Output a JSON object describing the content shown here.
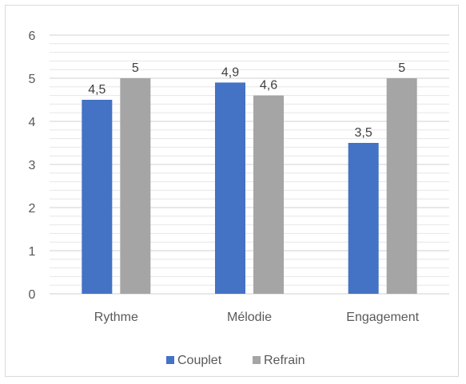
{
  "chart_data": {
    "type": "bar",
    "categories": [
      "Rythme",
      "Mélodie",
      "Engagement"
    ],
    "series": [
      {
        "name": "Couplet",
        "values": [
          4.5,
          4.9,
          3.5
        ],
        "labels": [
          "4,5",
          "4,9",
          "3,5"
        ],
        "color": "#4472C4"
      },
      {
        "name": "Refrain",
        "values": [
          5,
          4.6,
          5
        ],
        "labels": [
          "5",
          "4,6",
          "5"
        ],
        "color": "#A5A5A5"
      }
    ],
    "yticks": [
      "0",
      "1",
      "2",
      "3",
      "4",
      "5",
      "6"
    ],
    "ylim": [
      0,
      6
    ],
    "minor_grid_step": 0.2,
    "grid": true,
    "legend_position": "bottom"
  }
}
